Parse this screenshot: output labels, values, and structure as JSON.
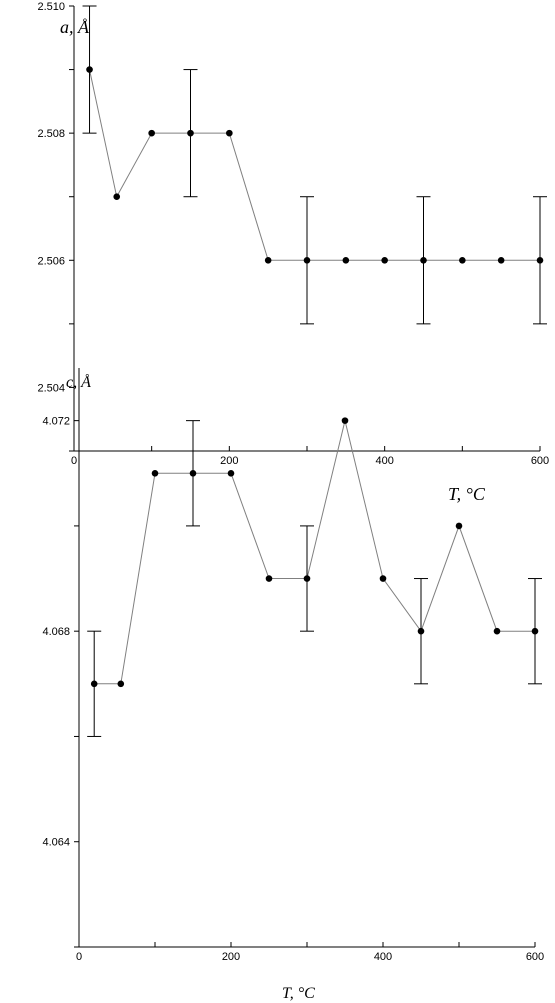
{
  "chart_data": [
    {
      "type": "line",
      "title": "",
      "xlabel": "T, °C",
      "ylabel": "a, Å",
      "xlim": [
        0,
        600
      ],
      "ylim": [
        2.503,
        2.51
      ],
      "xticks": [
        "0",
        "200",
        "400",
        "600"
      ],
      "yticks": [
        "2.504",
        "2.506",
        "2.508",
        "2.510"
      ],
      "grid": false,
      "series": [
        {
          "x": [
            20,
            55,
            100,
            150,
            200,
            250,
            300,
            350,
            400,
            450,
            500,
            550,
            600
          ],
          "y": [
            2.509,
            2.507,
            2.508,
            2.508,
            2.508,
            2.506,
            2.506,
            2.506,
            2.506,
            2.506,
            2.506,
            2.506,
            2.506
          ],
          "error_bars": [
            {
              "x": 20,
              "low": 2.508,
              "high": 2.51
            },
            {
              "x": 150,
              "low": 2.507,
              "high": 2.509
            },
            {
              "x": 300,
              "low": 2.505,
              "high": 2.507
            },
            {
              "x": 450,
              "low": 2.505,
              "high": 2.507
            },
            {
              "x": 600,
              "low": 2.505,
              "high": 2.507
            }
          ]
        }
      ]
    },
    {
      "type": "line",
      "title": "",
      "xlabel": "T, °C",
      "ylabel": "c, Å",
      "xlim": [
        0,
        600
      ],
      "ylim": [
        4.062,
        4.073
      ],
      "xticks": [
        "0",
        "200",
        "400",
        "600"
      ],
      "yticks": [
        "4.064",
        "4.068",
        "4.072"
      ],
      "grid": false,
      "series": [
        {
          "x": [
            20,
            55,
            100,
            150,
            200,
            250,
            300,
            350,
            400,
            450,
            500,
            550,
            600
          ],
          "y": [
            4.067,
            4.067,
            4.071,
            4.071,
            4.071,
            4.069,
            4.069,
            4.072,
            4.069,
            4.068,
            4.07,
            4.068,
            4.068
          ],
          "error_bars": [
            {
              "x": 20,
              "low": 4.066,
              "high": 4.068
            },
            {
              "x": 150,
              "low": 4.07,
              "high": 4.072
            },
            {
              "x": 300,
              "low": 4.068,
              "high": 4.07
            },
            {
              "x": 450,
              "low": 4.067,
              "high": 4.069
            },
            {
              "x": 600,
              "low": 4.067,
              "high": 4.069
            }
          ]
        }
      ]
    }
  ]
}
